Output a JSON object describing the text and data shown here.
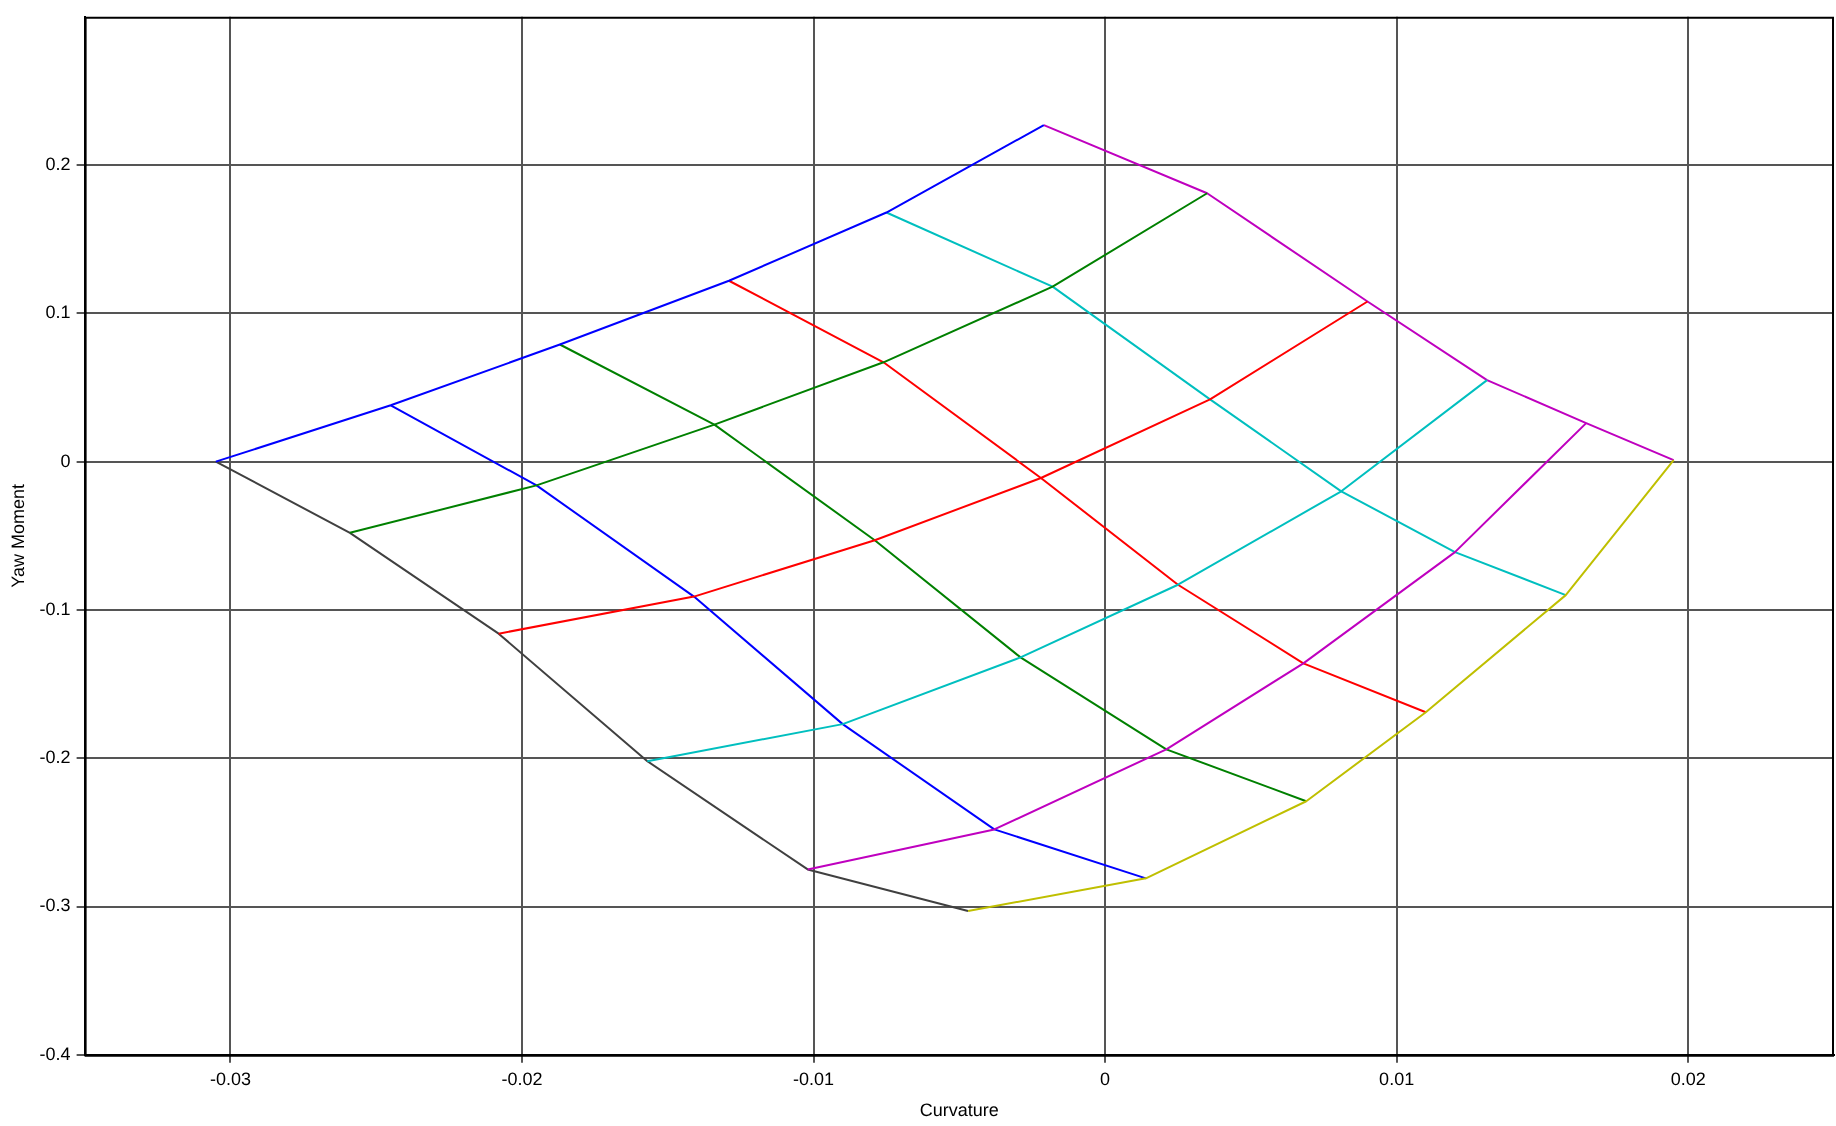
{
  "chart_data": {
    "type": "line",
    "xlabel": "Curvature",
    "ylabel": "Yaw Moment",
    "xlim": [
      -0.035,
      0.025
    ],
    "xticks": [
      -0.03,
      -0.02,
      -0.01,
      0,
      0.01,
      0.02
    ],
    "ylim": [
      -0.4,
      0.3
    ],
    "yticks": [
      -0.4,
      -0.3,
      -0.2,
      -0.1,
      0,
      0.1,
      0.2
    ],
    "grid": true,
    "legend": false,
    "marker": "none",
    "series": [
      {
        "color": "#0000ff",
        "x": [
          -0.0305,
          -0.0245,
          -0.0187,
          -0.0129,
          -0.0075,
          -0.0021
        ],
        "values": [
          0,
          0.038,
          0.079,
          0.122,
          0.168,
          0.227
        ]
      },
      {
        "color": "#008000",
        "x": [
          -0.0259,
          -0.0195,
          -0.0134,
          -0.0076,
          -0.0018,
          0.0035
        ],
        "values": [
          -0.048,
          -0.016,
          0.025,
          0.067,
          0.118,
          0.181
        ]
      },
      {
        "color": "#ff0000",
        "x": [
          -0.0208,
          -0.0141,
          -0.0079,
          -0.0022,
          0.0036,
          0.009
        ],
        "values": [
          -0.116,
          -0.091,
          -0.053,
          -0.011,
          0.042,
          0.108
        ]
      },
      {
        "color": "#00bfbf",
        "x": [
          -0.0157,
          -0.009,
          -0.0029,
          0.0025,
          0.0081,
          0.0131
        ],
        "values": [
          -0.202,
          -0.177,
          -0.132,
          -0.083,
          -0.02,
          0.055
        ]
      },
      {
        "color": "#bf00bf",
        "x": [
          -0.0102,
          -0.0038,
          0.0021,
          0.0068,
          0.012,
          0.0165
        ],
        "values": [
          -0.275,
          -0.248,
          -0.194,
          -0.136,
          -0.061,
          0.026
        ]
      },
      {
        "color": "#bfbf00",
        "x": [
          -0.0047,
          0.0014,
          0.0069,
          0.011,
          0.0158,
          0.0195
        ],
        "values": [
          -0.303,
          -0.281,
          -0.229,
          -0.169,
          -0.09,
          0.001
        ]
      },
      {
        "color": "#404040",
        "x": [
          -0.0305,
          -0.0259,
          -0.0208,
          -0.0157,
          -0.0102,
          -0.0047
        ],
        "values": [
          0,
          -0.048,
          -0.116,
          -0.202,
          -0.275,
          -0.303
        ]
      },
      {
        "color": "#0000ff",
        "x": [
          -0.0245,
          -0.0195,
          -0.0141,
          -0.009,
          -0.0038,
          0.0014
        ],
        "values": [
          0.038,
          -0.016,
          -0.091,
          -0.177,
          -0.248,
          -0.281
        ]
      },
      {
        "color": "#008000",
        "x": [
          -0.0187,
          -0.0134,
          -0.0079,
          -0.0029,
          0.0021,
          0.0069
        ],
        "values": [
          0.079,
          0.025,
          -0.053,
          -0.132,
          -0.194,
          -0.229
        ]
      },
      {
        "color": "#ff0000",
        "x": [
          -0.0129,
          -0.0076,
          -0.0022,
          0.0025,
          0.0068,
          0.011
        ],
        "values": [
          0.122,
          0.067,
          -0.011,
          -0.083,
          -0.136,
          -0.169
        ]
      },
      {
        "color": "#00bfbf",
        "x": [
          -0.0075,
          -0.0018,
          0.0036,
          0.0081,
          0.012,
          0.0158
        ],
        "values": [
          0.168,
          0.118,
          0.042,
          -0.02,
          -0.061,
          -0.09
        ]
      },
      {
        "color": "#bf00bf",
        "x": [
          -0.0021,
          0.0035,
          0.009,
          0.0131,
          0.0165,
          0.0195
        ],
        "values": [
          0.227,
          0.181,
          0.108,
          0.055,
          0.026,
          0.001
        ]
      }
    ]
  }
}
